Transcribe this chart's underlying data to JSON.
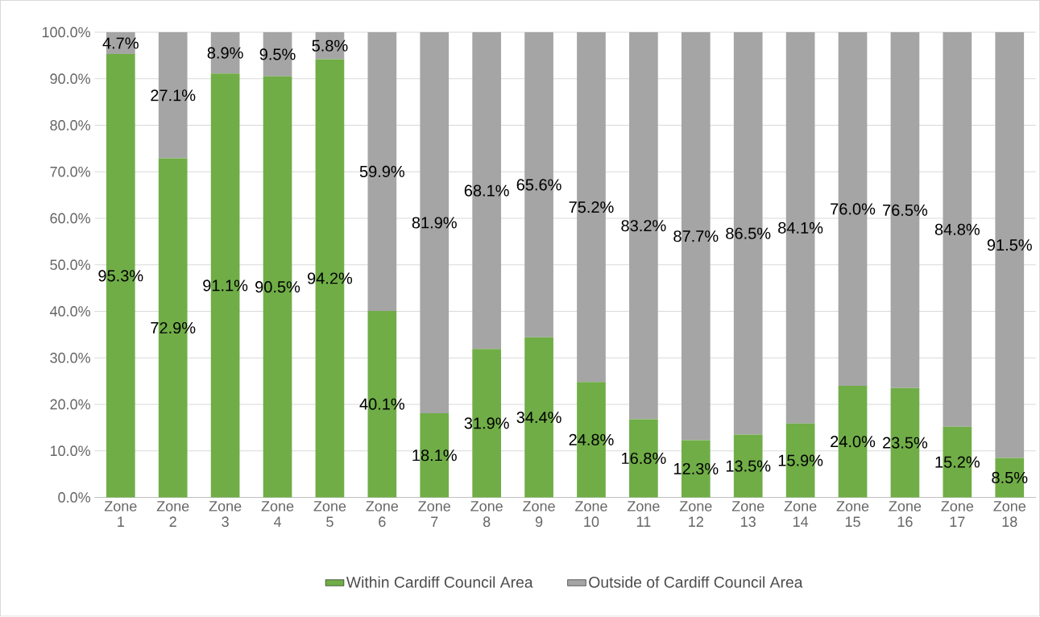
{
  "chart_data": {
    "type": "bar",
    "stacked": true,
    "categories": [
      "Zone 1",
      "Zone 2",
      "Zone 3",
      "Zone 4",
      "Zone 5",
      "Zone 6",
      "Zone 7",
      "Zone 8",
      "Zone 9",
      "Zone 10",
      "Zone 11",
      "Zone 12",
      "Zone 13",
      "Zone 14",
      "Zone 15",
      "Zone 16",
      "Zone 17",
      "Zone 18"
    ],
    "series": [
      {
        "name": "Within Cardiff Council Area",
        "color": "#70ad47",
        "values": [
          95.3,
          72.9,
          91.1,
          90.5,
          94.2,
          40.1,
          18.1,
          31.9,
          34.4,
          24.8,
          16.8,
          12.3,
          13.5,
          15.9,
          24.0,
          23.5,
          15.2,
          8.5
        ],
        "value_labels": [
          "95.3%",
          "72.9%",
          "91.1%",
          "90.5%",
          "94.2%",
          "40.1%",
          "18.1%",
          "31.9%",
          "34.4%",
          "24.8%",
          "16.8%",
          "12.3%",
          "13.5%",
          "15.9%",
          "24.0%",
          "23.5%",
          "15.2%",
          "8.5%"
        ]
      },
      {
        "name": "Outside of Cardiff Council Area",
        "color": "#a5a5a5",
        "values": [
          4.7,
          27.1,
          8.9,
          9.5,
          5.8,
          59.9,
          81.9,
          68.1,
          65.6,
          75.2,
          83.2,
          87.7,
          86.5,
          84.1,
          76.0,
          76.5,
          84.8,
          91.5
        ],
        "value_labels": [
          "4.7%",
          "27.1%",
          "8.9%",
          "9.5%",
          "5.8%",
          "59.9%",
          "81.9%",
          "68.1%",
          "65.6%",
          "75.2%",
          "83.2%",
          "87.7%",
          "86.5%",
          "84.1%",
          "76.0%",
          "76.5%",
          "84.8%",
          "91.5%"
        ]
      }
    ],
    "ylim": [
      0,
      100
    ],
    "yticks": [
      {
        "value": 0,
        "label": "0.0%"
      },
      {
        "value": 10,
        "label": "10.0%"
      },
      {
        "value": 20,
        "label": "20.0%"
      },
      {
        "value": 30,
        "label": "30.0%"
      },
      {
        "value": 40,
        "label": "40.0%"
      },
      {
        "value": 50,
        "label": "50.0%"
      },
      {
        "value": 60,
        "label": "60.0%"
      },
      {
        "value": 70,
        "label": "70.0%"
      },
      {
        "value": 80,
        "label": "80.0%"
      },
      {
        "value": 90,
        "label": "90.0%"
      },
      {
        "value": 100,
        "label": "100.0%"
      }
    ],
    "grid": "y",
    "legend": "bottom"
  }
}
